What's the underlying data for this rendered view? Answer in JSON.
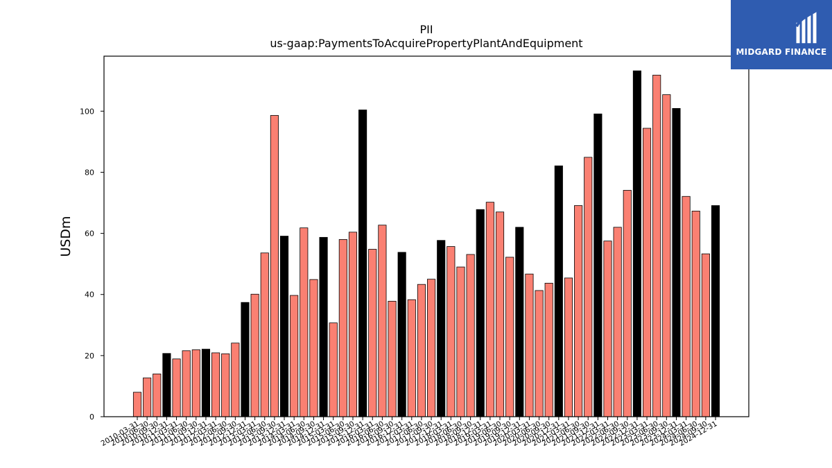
{
  "logo": {
    "text": "MIDGARD FINANCE",
    "icon": "midgard-logo-icon",
    "background": "#2f5cb0"
  },
  "chart_data": {
    "type": "bar",
    "title": "PII",
    "subtitle": "us-gaap:PaymentsToAcquirePropertyPlantAndEquipment",
    "xlabel": "",
    "ylabel": "USDm",
    "ylim": [
      0,
      118
    ],
    "yticks": [
      0,
      20,
      40,
      60,
      80,
      100
    ],
    "grid": false,
    "colors": {
      "quarter": "#fa8072",
      "year_end": "#000000"
    },
    "categories": [
      "2010-03-31",
      "2010-06-30",
      "2010-09-30",
      "2010-12-31",
      "2011-03-31",
      "2011-06-30",
      "2011-09-30",
      "2011-12-31",
      "2012-03-31",
      "2012-06-30",
      "2012-09-30",
      "2012-12-31",
      "2013-03-31",
      "2013-06-30",
      "2013-09-30",
      "2013-12-31",
      "2014-03-31",
      "2014-06-30",
      "2014-09-30",
      "2014-12-31",
      "2015-03-31",
      "2015-06-30",
      "2015-09-30",
      "2015-12-31",
      "2016-03-31",
      "2016-06-30",
      "2016-09-30",
      "2016-12-31",
      "2017-03-31",
      "2017-06-30",
      "2017-09-30",
      "2017-12-31",
      "2018-03-31",
      "2018-06-30",
      "2018-09-30",
      "2018-12-31",
      "2019-03-31",
      "2019-06-30",
      "2019-09-30",
      "2019-12-31",
      "2020-03-31",
      "2020-06-30",
      "2020-09-30",
      "2020-12-31",
      "2021-03-31",
      "2021-06-30",
      "2021-09-30",
      "2021-12-31",
      "2022-03-31",
      "2022-06-30",
      "2022-09-30",
      "2022-12-31",
      "2023-03-31",
      "2023-06-30",
      "2023-09-30",
      "2023-12-31",
      "2024-03-31",
      "2024-06-30",
      "2024-09-30",
      "2024-12-31"
    ],
    "values": [
      8.0,
      12.7,
      14.0,
      20.7,
      18.9,
      21.6,
      21.9,
      22.1,
      20.9,
      20.6,
      24.1,
      37.4,
      40.1,
      53.6,
      98.6,
      59.1,
      39.7,
      61.8,
      44.9,
      58.7,
      30.7,
      58.0,
      60.4,
      100.4,
      54.8,
      62.7,
      37.8,
      53.8,
      38.3,
      43.3,
      45.0,
      57.7,
      55.7,
      49.0,
      53.1,
      67.8,
      70.2,
      67.0,
      52.2,
      62.0,
      46.7,
      41.3,
      43.7,
      82.1,
      45.4,
      69.1,
      84.9,
      99.1,
      57.5,
      62.0,
      74.1,
      113.2,
      94.4,
      111.8,
      105.4,
      100.9,
      72.1,
      67.3,
      53.3,
      69.1
    ],
    "year_end": [
      false,
      false,
      false,
      true,
      false,
      false,
      false,
      true,
      false,
      false,
      false,
      true,
      false,
      false,
      false,
      true,
      false,
      false,
      false,
      true,
      false,
      false,
      false,
      true,
      false,
      false,
      false,
      true,
      false,
      false,
      false,
      true,
      false,
      false,
      false,
      true,
      false,
      false,
      false,
      true,
      false,
      false,
      false,
      true,
      false,
      false,
      false,
      true,
      false,
      false,
      false,
      true,
      false,
      false,
      false,
      true,
      false,
      false,
      false,
      true
    ]
  }
}
